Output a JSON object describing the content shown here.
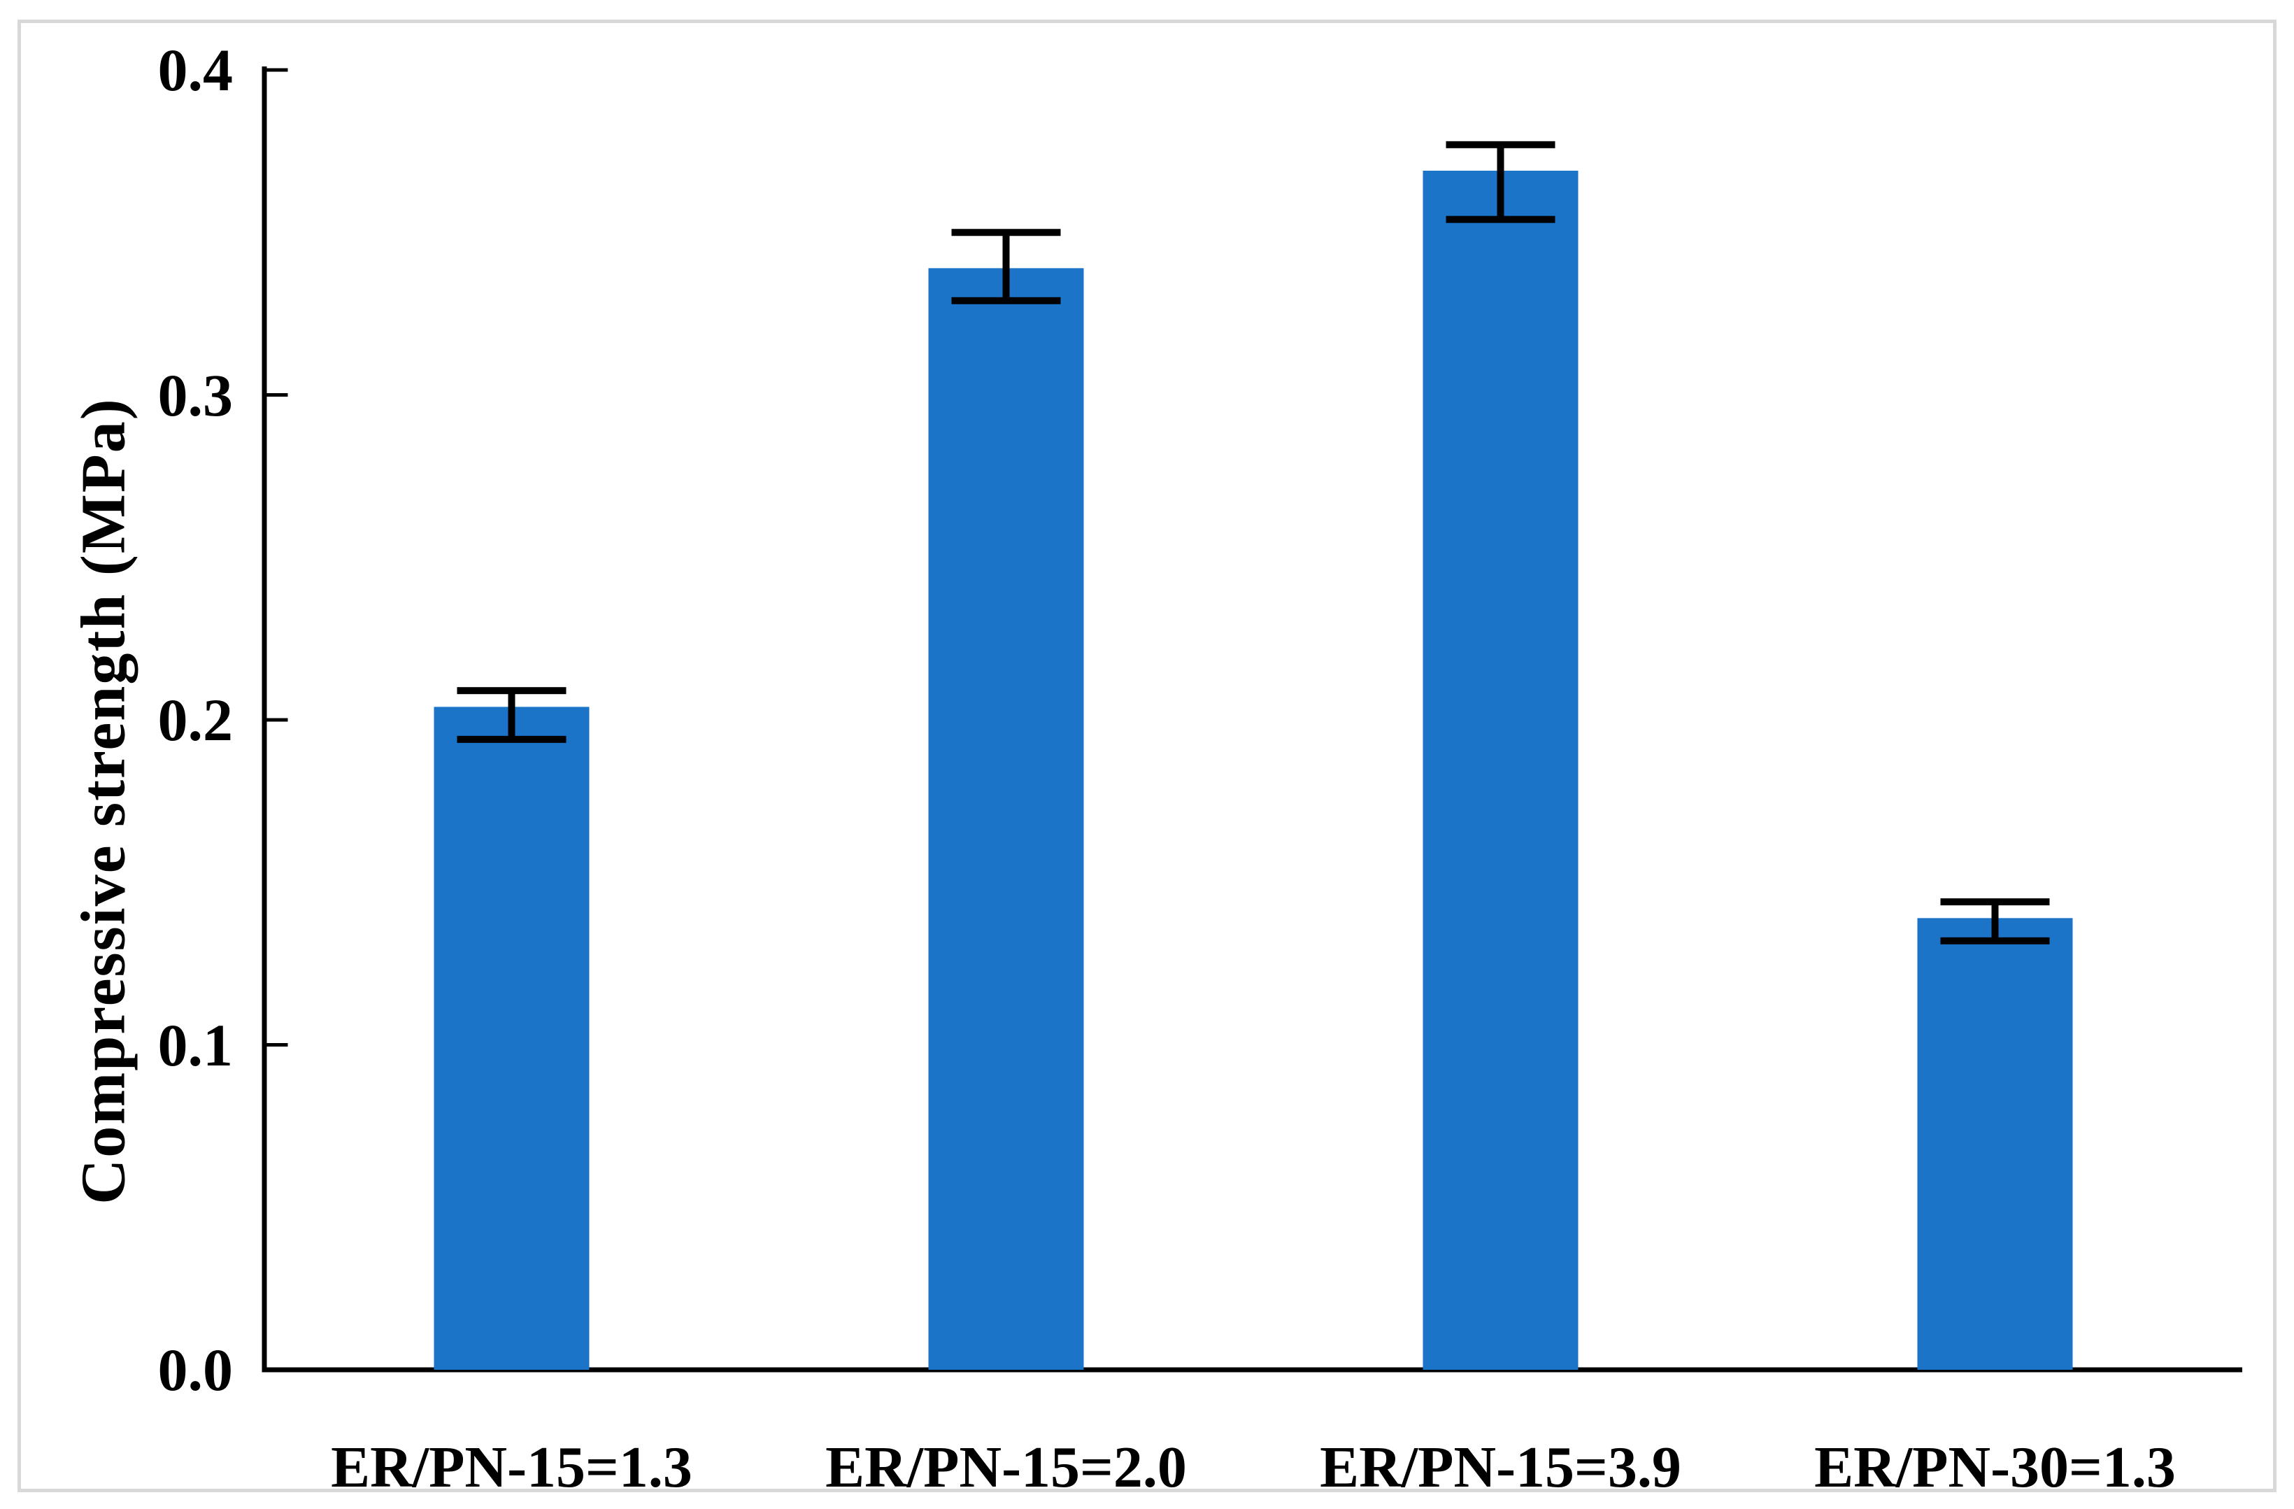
{
  "chart_data": {
    "type": "bar",
    "title": "",
    "ylabel": "Compressive strength (MPa)",
    "xlabel": "",
    "categories": [
      "ER/PN-15=1.3",
      "ER/PN-15=2.0",
      "ER/PN-15=3.9",
      "ER/PN-30=1.3"
    ],
    "values": [
      0.204,
      0.339,
      0.369,
      0.139
    ],
    "error_upper": [
      0.005,
      0.011,
      0.008,
      0.005
    ],
    "error_lower": [
      0.01,
      0.01,
      0.015,
      0.007
    ],
    "ylim": [
      0.0,
      0.4
    ],
    "ytick_values": [
      0.0,
      0.1,
      0.2,
      0.3,
      0.4
    ],
    "ytick_labels": [
      "0.0",
      "0.1",
      "0.2",
      "0.3",
      "0.4"
    ],
    "grid": false,
    "legend": "none",
    "bar_color": "#1b74c8",
    "error_bar_color": "#000000",
    "axis_color": "#000000",
    "background_color": "#ffffff",
    "frame_border_color": "#d8d8d8"
  }
}
